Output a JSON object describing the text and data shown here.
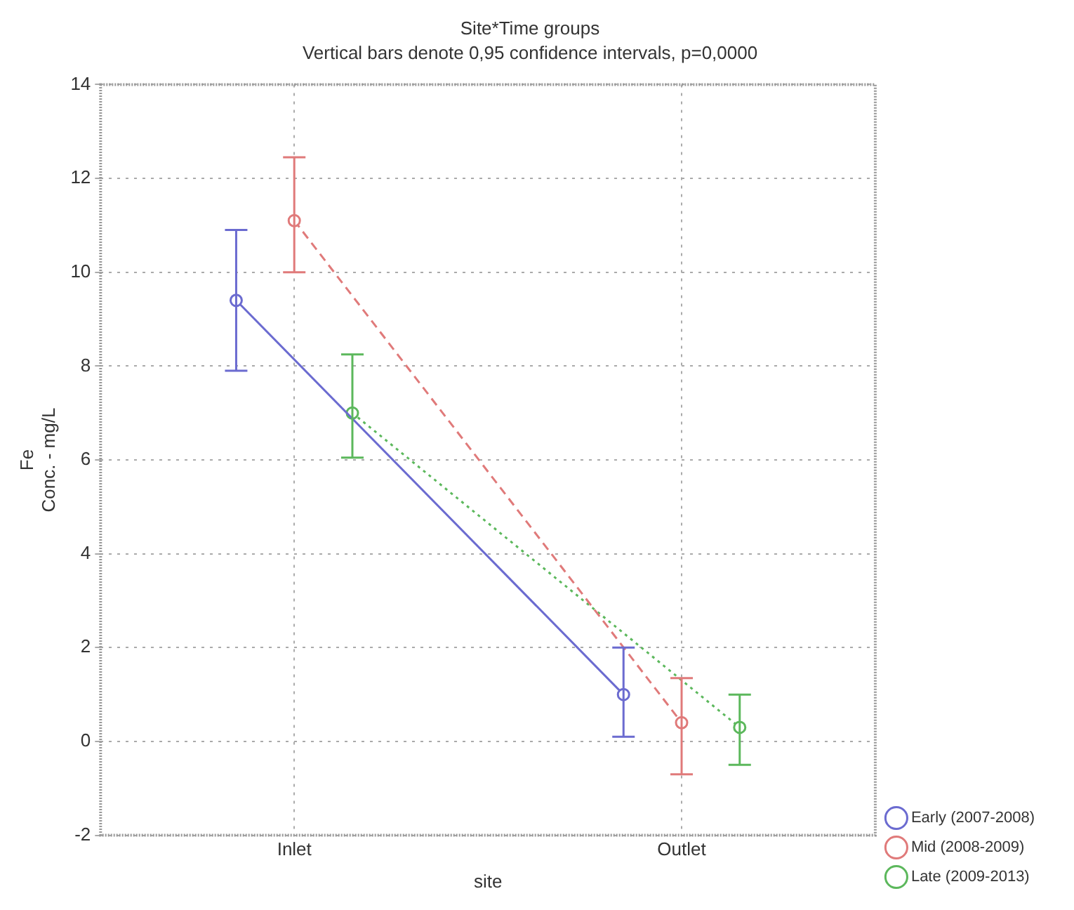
{
  "chart_data": {
    "type": "line",
    "title": "Site*Time groups",
    "subtitle": "Vertical bars denote 0,95 confidence intervals, p=0,0000",
    "xlabel": "site",
    "ylabel": "Fe\nConc. - mg/L",
    "categories": [
      "Inlet",
      "Outlet"
    ],
    "series": [
      {
        "name": "Early (2007-2008)",
        "color": "#6b6bd0",
        "values": [
          9.4,
          1.0
        ],
        "errors": [
          [
            7.9,
            10.9
          ],
          [
            0.1,
            2.0
          ]
        ],
        "line_style": "solid"
      },
      {
        "name": "Mid (2008-2009)",
        "color": "#e07a7a",
        "values": [
          11.1,
          0.4
        ],
        "errors": [
          [
            10.0,
            12.45
          ],
          [
            -0.7,
            1.35
          ]
        ],
        "line_style": "dashed"
      },
      {
        "name": "Late (2009-2013)",
        "color": "#5cb85c",
        "values": [
          7.0,
          0.3
        ],
        "errors": [
          [
            6.05,
            8.25
          ],
          [
            -0.5,
            1.0
          ]
        ],
        "line_style": "dotted"
      }
    ],
    "ylim": [
      -2,
      14
    ],
    "yticks": [
      -2,
      0,
      2,
      4,
      6,
      8,
      10,
      12,
      14
    ],
    "grid": true,
    "legend": "bottom right",
    "marker": "circle"
  }
}
